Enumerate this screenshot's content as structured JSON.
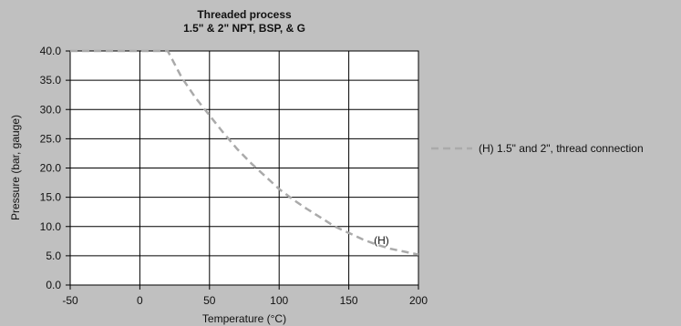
{
  "chart_data": {
    "type": "line",
    "title": "Threaded process",
    "subtitle": "1.5\" & 2\" NPT, BSP, & G",
    "xlabel": "Temperature (°C)",
    "ylabel": "Pressure (bar, gauge)",
    "xlim": [
      -50,
      200
    ],
    "ylim": [
      0,
      40
    ],
    "x_ticks": [
      -50,
      0,
      50,
      100,
      150,
      200
    ],
    "x_tick_labels": [
      "-50",
      "0",
      "50",
      "100",
      "150",
      "200"
    ],
    "y_ticks": [
      0,
      5,
      10,
      15,
      20,
      25,
      30,
      35,
      40
    ],
    "y_tick_labels": [
      "0.0",
      "5.0",
      "10.0",
      "15.0",
      "20.0",
      "25.0",
      "30.0",
      "35.0",
      "40.0"
    ],
    "grid": true,
    "legend_position": "right",
    "series": [
      {
        "name": "(H) 1.5\" and 2\", thread connection",
        "color": "#aaaaaa",
        "style": "dashed",
        "points": [
          [
            -50,
            40
          ],
          [
            20,
            40
          ],
          [
            30,
            35.5
          ],
          [
            40,
            32
          ],
          [
            50,
            29
          ],
          [
            60,
            26
          ],
          [
            70,
            23.2
          ],
          [
            80,
            20.8
          ],
          [
            90,
            18.6
          ],
          [
            100,
            16.4
          ],
          [
            110,
            14.6
          ],
          [
            120,
            13
          ],
          [
            130,
            11.5
          ],
          [
            140,
            10
          ],
          [
            150,
            8.9
          ],
          [
            160,
            7.8
          ],
          [
            170,
            6.9
          ],
          [
            180,
            6.2
          ],
          [
            190,
            5.7
          ],
          [
            200,
            5.2
          ]
        ]
      }
    ],
    "annotations": [
      {
        "text": "(H)",
        "x": 168,
        "y": 7.6
      }
    ]
  }
}
